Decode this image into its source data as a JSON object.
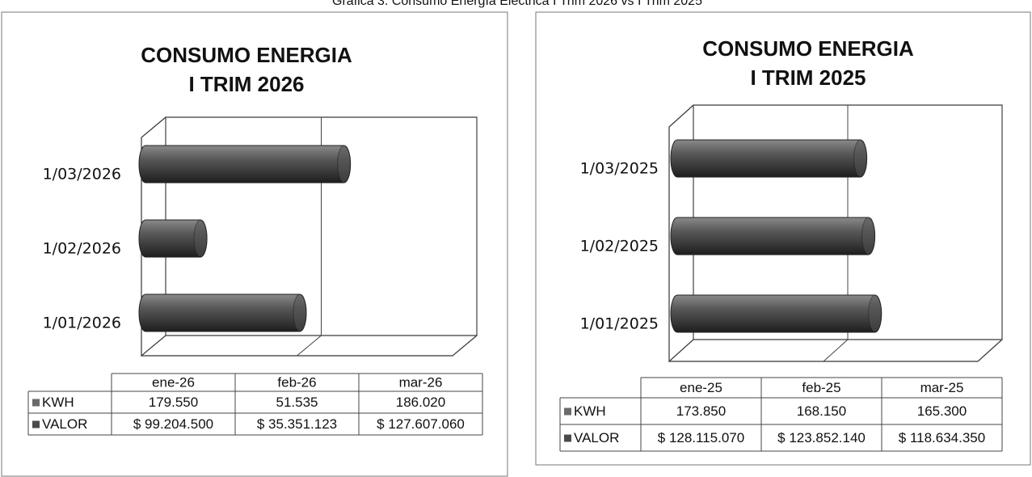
{
  "caption": "Gráfica 3. Consumo Energía Eléctrica I Trim 2026 vs I Trim 2025",
  "chart_data": [
    {
      "type": "bar",
      "orientation": "horizontal",
      "title": [
        "CONSUMO  ENERGIA",
        "I TRIM 2026"
      ],
      "categories": [
        "1/01/2026",
        "1/02/2026",
        "1/03/2026"
      ],
      "table_categories": [
        "ene-26",
        "feb-26",
        "mar-26"
      ],
      "xlim": [
        0,
        200000000
      ],
      "xticks": [
        0,
        100000000,
        200000000
      ],
      "grid": true,
      "bar_series": 1,
      "series": [
        {
          "name": "KWH",
          "color": "#6a6a6a",
          "values": [
            179550,
            51535,
            186020
          ],
          "value_labels": [
            "179.550",
            "51.535",
            "186.020"
          ]
        },
        {
          "name": "VALOR",
          "color": "#4a4a4a",
          "values": [
            99204500,
            35351123,
            127607060
          ],
          "value_labels": [
            "$ 99.204.500",
            "$ 35.351.123",
            "$ 127.607.060"
          ]
        }
      ]
    },
    {
      "type": "bar",
      "orientation": "horizontal",
      "title": [
        "CONSUMO  ENERGIA",
        "I TRIM 2025"
      ],
      "categories": [
        "1/01/2025",
        "1/02/2025",
        "1/03/2025"
      ],
      "table_categories": [
        "ene-25",
        "feb-25",
        "mar-25"
      ],
      "xlim": [
        0,
        200000000
      ],
      "xticks": [
        0,
        100000000,
        200000000
      ],
      "grid": true,
      "bar_series": 1,
      "series": [
        {
          "name": "KWH",
          "color": "#6a6a6a",
          "values": [
            173850,
            168150,
            165300
          ],
          "value_labels": [
            "173.850",
            "168.150",
            "165.300"
          ]
        },
        {
          "name": "VALOR",
          "color": "#4a4a4a",
          "values": [
            128115070,
            123852140,
            118634350
          ],
          "value_labels": [
            "$ 128.115.070",
            "$ 123.852.140",
            "$ 118.634.350"
          ]
        }
      ]
    }
  ]
}
